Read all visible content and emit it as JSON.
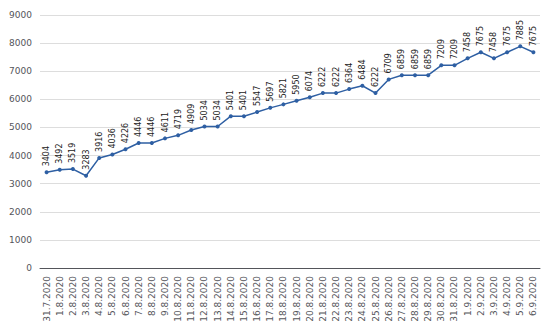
{
  "chart_data": {
    "type": "line",
    "categories": [
      "31.7.2020",
      "1.8.2020",
      "2.8.2020",
      "3.8.2020",
      "4.8.2020",
      "5.8.2020",
      "6.8.2020",
      "7.8.2020",
      "8.8.2020",
      "9.8.2020",
      "10.8.2020",
      "11.8.2020",
      "12.8.2020",
      "13.8.2020",
      "14.8.2020",
      "15.8.2020",
      "16.8.2020",
      "17.8.2020",
      "18.8.2020",
      "19.8.2020",
      "20.8.2020",
      "21.8.2020",
      "22.8.2020",
      "23.8.2020",
      "24.8.2020",
      "25.8.2020",
      "26.8.2020",
      "27.8.2020",
      "28.8.2020",
      "29.8.2020",
      "30.8.2020",
      "31.8.2020",
      "1.9.2020",
      "2.9.2020",
      "3.9.2020",
      "4.9.2020",
      "5.9.2020",
      "6.9.2020"
    ],
    "values": [
      3404,
      3492,
      3519,
      3283,
      3916,
      4036,
      4226,
      4446,
      4446,
      4611,
      4719,
      4909,
      5034,
      5034,
      5401,
      5401,
      5547,
      5697,
      5821,
      5950,
      6074,
      6222,
      6222,
      6364,
      6484,
      6222,
      6709,
      6859,
      6859,
      6859,
      7209,
      7209,
      7458,
      7675,
      7458,
      7675,
      7885,
      7675
    ],
    "color": "#2E5FA3",
    "marker": "circle",
    "ylim": [
      0,
      9000
    ],
    "yticks": [
      0,
      1000,
      2000,
      3000,
      4000,
      5000,
      6000,
      7000,
      8000,
      9000
    ],
    "grid": true,
    "data_labels": true
  }
}
